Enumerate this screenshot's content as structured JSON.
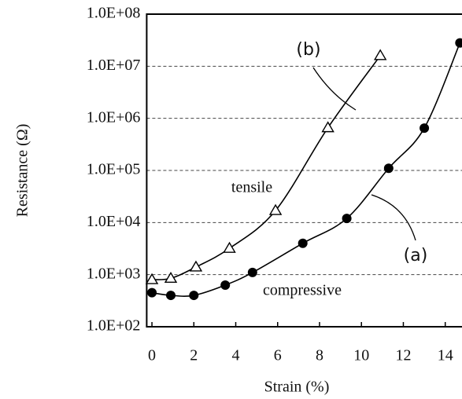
{
  "chart_data": {
    "type": "line",
    "x_label": "Strain (%)",
    "y_label": "Resistance (Ω)",
    "xlim": [
      -0.25,
      14.8
    ],
    "xticks": [
      0,
      2,
      4,
      6,
      8,
      10,
      12,
      14
    ],
    "ylim": [
      100,
      100000000
    ],
    "log_y": true,
    "grid": true,
    "yticks": [
      {
        "value": 100,
        "label": "1.0E+02"
      },
      {
        "value": 1000,
        "label": "1.0E+03"
      },
      {
        "value": 10000,
        "label": "1.0E+04"
      },
      {
        "value": 100000,
        "label": "1.0E+05"
      },
      {
        "value": 1000000,
        "label": "1.0E+06"
      },
      {
        "value": 10000000,
        "label": "1.0E+07"
      },
      {
        "value": 100000000,
        "label": "1.0E+08"
      }
    ],
    "series": [
      {
        "name": "compressive",
        "marker": "circle",
        "color": "#000000",
        "x": [
          0,
          0.9,
          2.0,
          3.5,
          4.8,
          7.2,
          9.3,
          11.3,
          13.0,
          14.7
        ],
        "values": [
          450,
          400,
          400,
          630,
          1100,
          4000,
          12000,
          110000,
          650000,
          28000000
        ]
      },
      {
        "name": "tensile",
        "marker": "triangle",
        "color": "#000000",
        "x": [
          0,
          0.9,
          2.1,
          3.7,
          5.9,
          8.4,
          10.9
        ],
        "values": [
          800,
          850,
          1400,
          3200,
          17000,
          660000,
          16000000
        ]
      }
    ],
    "annotations": [
      "(a)",
      "(b)"
    ]
  }
}
